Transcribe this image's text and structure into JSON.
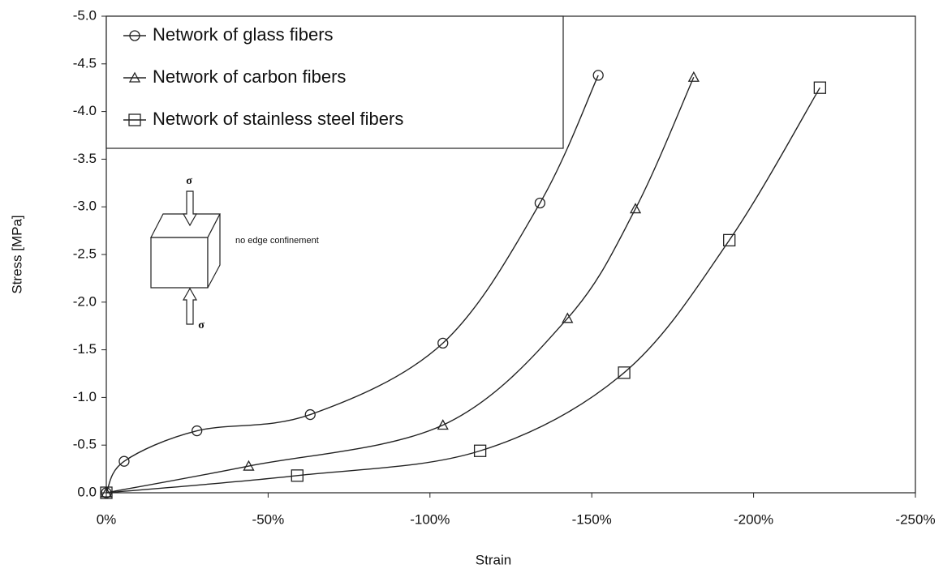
{
  "chart_data": {
    "type": "line",
    "x_label": "Strain",
    "y_label": "Stress [MPa]",
    "xlim": [
      0,
      -250
    ],
    "ylim": [
      0,
      -5
    ],
    "xticks": [
      {
        "value": 0,
        "label": "0%"
      },
      {
        "value": -50,
        "label": "-50%"
      },
      {
        "value": -100,
        "label": "-100%"
      },
      {
        "value": -150,
        "label": "-150%"
      },
      {
        "value": -200,
        "label": "-200%"
      },
      {
        "value": -250,
        "label": "-250%"
      }
    ],
    "yticks": [
      {
        "value": 0,
        "label": "0.0"
      },
      -0.5,
      {
        "value": -1,
        "label": "-1.0"
      },
      -1.5,
      {
        "value": -2,
        "label": "-2.0"
      },
      -2.5,
      {
        "value": -3,
        "label": "-3.0"
      },
      -3.5,
      {
        "value": -4,
        "label": "-4.0"
      },
      -4.5,
      {
        "value": -5,
        "label": "-5.0"
      }
    ],
    "grid": false,
    "legend": "upper-left",
    "series": [
      {
        "name": "Network of glass fibers",
        "color": "#222222",
        "marker": "circle",
        "x": [
          0,
          -5.5,
          -28,
          -63,
          -104,
          -134,
          -152
        ],
        "values": [
          0,
          -0.33,
          -0.65,
          -0.82,
          -1.57,
          -3.04,
          -4.38
        ]
      },
      {
        "name": "Network of carbon fibers",
        "color": "#222222",
        "marker": "triangle",
        "x": [
          0,
          -44,
          -104,
          -142.5,
          -163.5,
          -181.5
        ],
        "values": [
          0,
          -0.28,
          -0.71,
          -1.83,
          -2.98,
          -4.36
        ]
      },
      {
        "name": "Network of stainless steel fibers",
        "color": "#222222",
        "marker": "square",
        "x": [
          0,
          -59,
          -115.5,
          -160,
          -192.5,
          -220.5
        ],
        "values": [
          0,
          -0.18,
          -0.44,
          -1.26,
          -2.65,
          -4.25
        ]
      }
    ],
    "annotations": [
      "σ",
      "σ",
      "no edge confinement"
    ]
  }
}
